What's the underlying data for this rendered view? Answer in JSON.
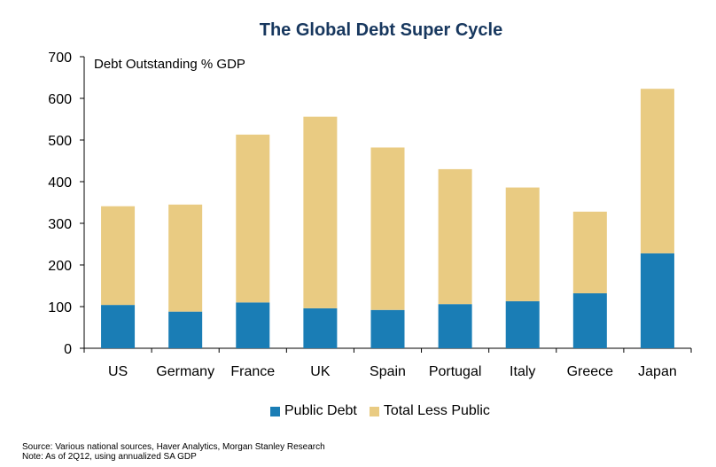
{
  "colors": {
    "public": "#1a7db5",
    "total_less_public": "#e9cb82",
    "title": "#17375e"
  },
  "chart_data": {
    "type": "bar",
    "stacked": true,
    "title": "The Global Debt Super Cycle",
    "ylabel": "Debt Outstanding % GDP",
    "xlabel": "",
    "ylim": [
      0,
      700
    ],
    "yticks": [
      0,
      100,
      200,
      300,
      400,
      500,
      600,
      700
    ],
    "categories": [
      "US",
      "Germany",
      "France",
      "UK",
      "Spain",
      "Portugal",
      "Italy",
      "Greece",
      "Japan"
    ],
    "series": [
      {
        "name": "Public Debt",
        "values": [
          104,
          88,
          110,
          96,
          92,
          106,
          113,
          132,
          228
        ]
      },
      {
        "name": "Total Less Public",
        "values": [
          237,
          257,
          403,
          460,
          390,
          324,
          273,
          196,
          395
        ]
      }
    ],
    "legend": "bottom-center",
    "grid": false
  },
  "footnotes": {
    "source": "Source: Various national sources, Haver Analytics, Morgan Stanley Research",
    "note": "Note: As of 2Q12, using annualized SA GDP"
  }
}
